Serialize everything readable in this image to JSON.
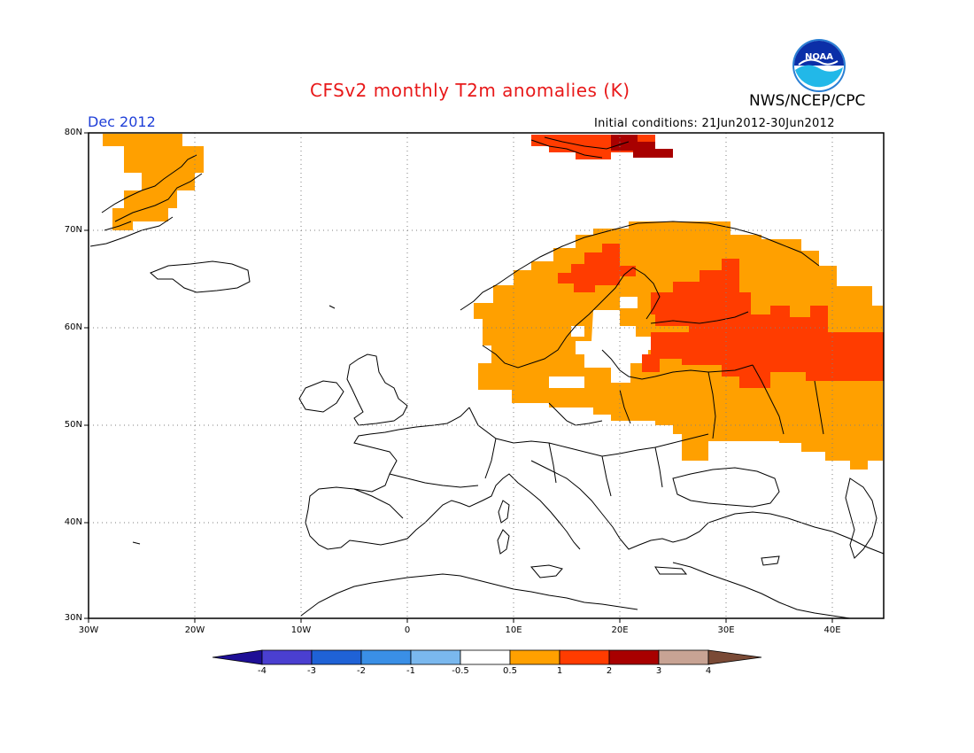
{
  "title": "CFSv2 monthly T2m anomalies (K)",
  "agency": "NWS/NCEP/CPC",
  "logo_text": "NOAA",
  "valid_month": "Dec 2012",
  "initial_conditions": "Initial conditions: 21Jun2012-30Jun2012",
  "map": {
    "lon_range": [
      -30,
      45
    ],
    "lat_range": [
      30,
      80
    ],
    "lat_labels": [
      "80N",
      "70N",
      "60N",
      "50N",
      "40N",
      "30N"
    ],
    "lon_labels": [
      "30W",
      "20W",
      "10W",
      "0",
      "10E",
      "20E",
      "30E",
      "40E"
    ],
    "gridlines": "dotted"
  },
  "colorbar": {
    "labels": [
      "-4",
      "-3",
      "-2",
      "-1",
      "-0.5",
      "0.5",
      "1",
      "2",
      "3",
      "4"
    ],
    "colors": [
      "#1e0f96",
      "#4a3fd0",
      "#1f62d6",
      "#3a8fe6",
      "#7ab8ee",
      "#ffffff",
      "#ffa000",
      "#ff3c00",
      "#a80000",
      "#c8a394",
      "#7a4a36"
    ]
  },
  "anomaly_classes": {
    "0.5_to_1": "#ffa000",
    "1_to_2": "#ff3c00",
    "2_to_3": "#a80000"
  }
}
